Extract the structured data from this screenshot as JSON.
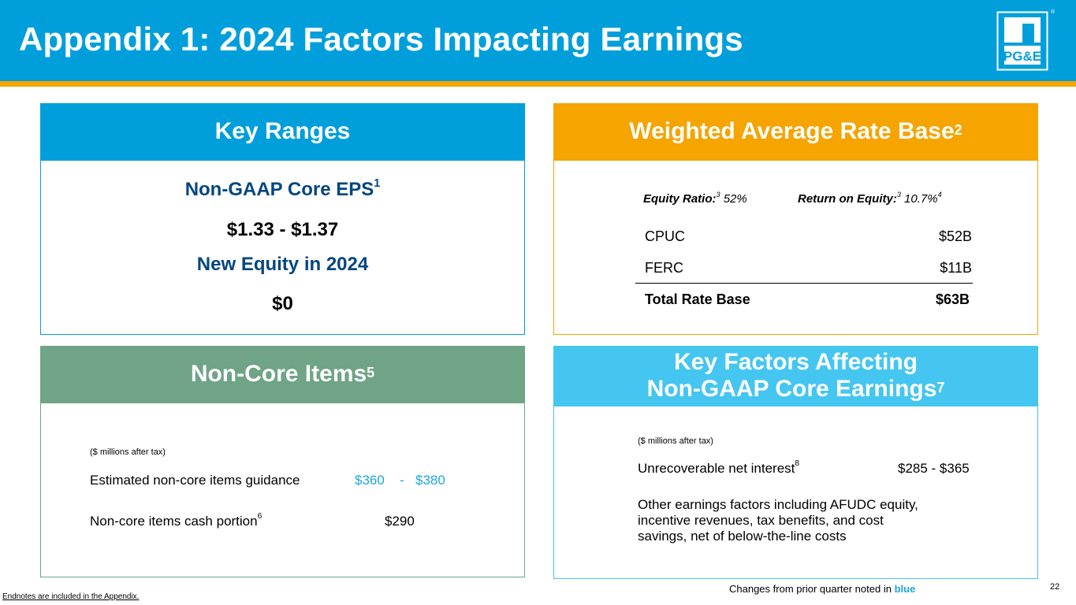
{
  "header": {
    "title": "Appendix 1: 2024 Factors Impacting Earnings",
    "logo_text": "PG&E",
    "registered_mark": "®"
  },
  "key_ranges": {
    "title": "Key Ranges",
    "eps_label": "Non-GAAP Core EPS",
    "eps_footnote": "1",
    "eps_value": "$1.33 - $1.37",
    "equity_label": "New Equity in 2024",
    "equity_value": "$0"
  },
  "rate_base": {
    "title": "Weighted Average Rate Base",
    "title_footnote": "2",
    "equity_ratio_label": "Equity Ratio:",
    "equity_ratio_footnote": "3",
    "equity_ratio_value": "52%",
    "roe_label": "Return on Equity:",
    "roe_footnote": "3",
    "roe_value": "10.7%",
    "roe_value_footnote": "4",
    "rows": [
      {
        "label": "CPUC",
        "value": "$52B"
      },
      {
        "label": "FERC",
        "value": "$11B"
      }
    ],
    "total_label": "Total Rate Base",
    "total_value": "$63B"
  },
  "non_core": {
    "title": "Non-Core Items",
    "title_footnote": "5",
    "units": "($ millions after tax)",
    "guidance_label": "Estimated non-core items guidance",
    "guidance_low": "$360",
    "guidance_sep": "-",
    "guidance_high": "$380",
    "cash_label": "Non-core items cash portion",
    "cash_footnote": "6",
    "cash_value": "$290"
  },
  "key_factors": {
    "title_line1": "Key Factors Affecting",
    "title_line2": "Non-GAAP Core Earnings",
    "title_footnote": "7",
    "units": "($ millions after tax)",
    "interest_label": "Unrecoverable net interest",
    "interest_footnote": "8",
    "interest_value": "$285 - $365",
    "other_line1": "Other earnings factors including AFUDC equity,",
    "other_line2": "incentive revenues, tax benefits, and cost",
    "other_line3": "savings, net of below-the-line costs"
  },
  "footer": {
    "endnotes": "Endnotes are included in the Appendix.",
    "changes_text": "Changes from prior quarter noted in",
    "changes_highlight": "blue",
    "page_number": "22"
  },
  "colors": {
    "header_blue": "#009fdb",
    "accent_orange": "#f5a400",
    "green": "#6fa486",
    "light_blue": "#44c6f1",
    "navy_text": "#00467f",
    "change_blue": "#1ba7de"
  }
}
